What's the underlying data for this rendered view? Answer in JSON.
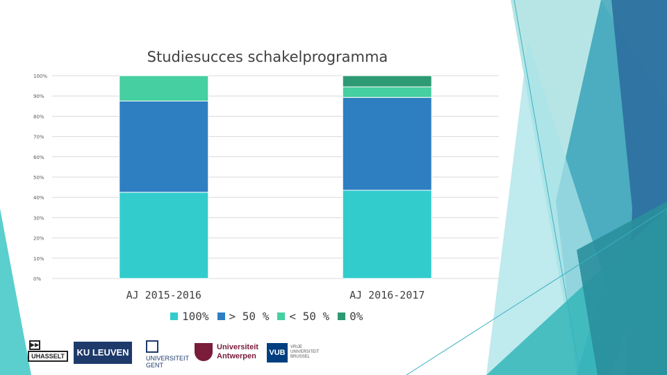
{
  "chart_data": {
    "type": "bar",
    "stacked": true,
    "title": "Studiesucces schakelprogramma",
    "categories": [
      "AJ 2015-2016",
      "AJ 2016-2017"
    ],
    "series": [
      {
        "name": "100%",
        "color": "#33cccc",
        "values": [
          42.5,
          43.5
        ]
      },
      {
        "name": "> 50 %",
        "color": "#2e7fc2",
        "values": [
          45,
          45.8
        ]
      },
      {
        "name": "< 50 %",
        "color": "#46cfa0",
        "values": [
          12.5,
          5.2
        ]
      },
      {
        "name": "0%",
        "color": "#2e9a73",
        "values": [
          0,
          5.5
        ]
      }
    ],
    "yticks": [
      "0%",
      "10%",
      "20%",
      "30%",
      "40%",
      "50%",
      "60%",
      "70%",
      "80%",
      "90%",
      "100%"
    ],
    "ylim": [
      0,
      100
    ],
    "grid": true,
    "legend_position": "bottom"
  },
  "logos": {
    "uhasselt": "UHASSELT",
    "uhasselt_mark": "▶▶",
    "kuleuven": "KU LEUVEN",
    "ugent_line1": "UNIVERSITEIT",
    "ugent_line2": "GENT",
    "uantwerpen_line1": "Universiteit",
    "uantwerpen_line2": "Antwerpen",
    "vub": "VUB",
    "vub_text": "VRIJE UNIVERSITEIT BRUSSEL"
  }
}
